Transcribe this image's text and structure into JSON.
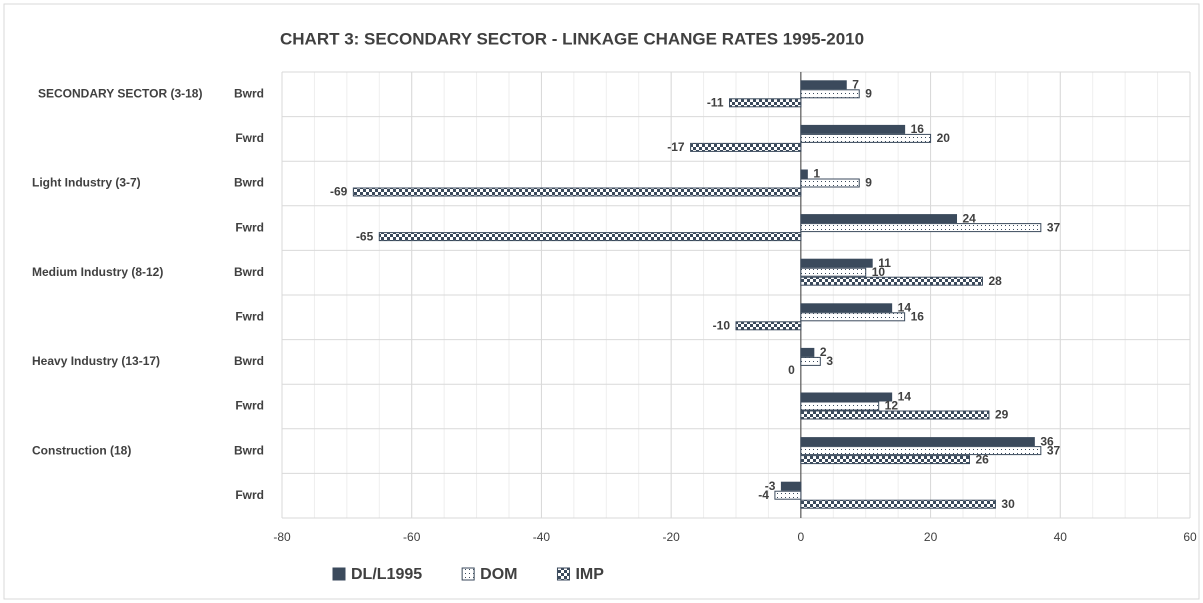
{
  "chart_data": {
    "type": "hbar_grouped",
    "title": "CHART 3: SECONDARY SECTOR - LINKAGE CHANGE RATES 1995-2010",
    "groups": [
      "SECONDARY SECTOR (3-18)",
      "Light Industry (3-7)",
      "Medium Industry (8-12)",
      "Heavy Industry (13-17)",
      "Construction  (18)"
    ],
    "categories": [
      "Bwrd",
      "Fwrd",
      "Bwrd",
      "Fwrd",
      "Bwrd",
      "Fwrd",
      "Bwrd",
      "Fwrd",
      "Bwrd",
      "Fwrd"
    ],
    "series": [
      {
        "name": "DL/L1995",
        "color": "#3b4a5c",
        "pattern": "solid",
        "values": [
          7,
          16,
          1,
          24,
          11,
          14,
          2,
          14,
          36,
          -3
        ]
      },
      {
        "name": "DOM",
        "color": "#3b4a5c",
        "pattern": "dots",
        "values": [
          9,
          20,
          9,
          37,
          10,
          16,
          3,
          12,
          37,
          -4
        ]
      },
      {
        "name": "IMP",
        "color": "#3b4a5c",
        "pattern": "checker",
        "values": [
          -11,
          -17,
          -69,
          -65,
          28,
          -10,
          0,
          29,
          26,
          30
        ]
      }
    ],
    "xlim": [
      -80,
      60
    ],
    "xticks": [
      -80,
      -60,
      -40,
      -20,
      0,
      20,
      40,
      60
    ],
    "grid": true
  }
}
